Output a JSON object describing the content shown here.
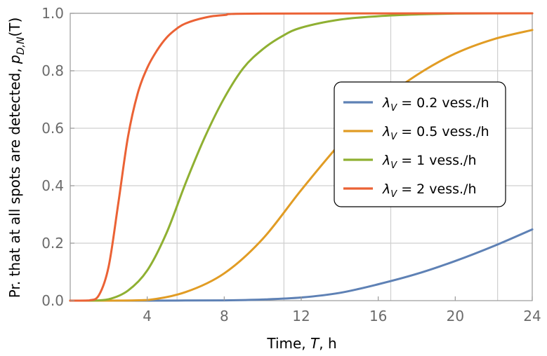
{
  "chart_data": {
    "type": "line",
    "xlabel": {
      "pre": "Time, ",
      "var": "T",
      "post": ", h"
    },
    "ylabel": {
      "pre": "Pr. that at all spots are detected, ",
      "var": "p",
      "sub": "D,N",
      "post": "(T)"
    },
    "xlim": [
      0,
      24
    ],
    "ylim": [
      0,
      1
    ],
    "xticks": [
      "4",
      "8",
      "12",
      "16",
      "20",
      "24"
    ],
    "yticks": [
      "0.0",
      "0.2",
      "0.4",
      "0.6",
      "0.8",
      "1.0"
    ],
    "grid": true,
    "grid_x": [
      5.55,
      11.1,
      16.65,
      22.2
    ],
    "legend_position": "center-right",
    "series": [
      {
        "name": {
          "sym": "λ",
          "sub": "V",
          "rest": " = 0.2 vess./h"
        },
        "color": "#5e81b5",
        "x": [
          0,
          2,
          4,
          6,
          8,
          10,
          12,
          14,
          16,
          18,
          20,
          22,
          24
        ],
        "y": [
          0,
          0,
          0,
          0.0005,
          0.001,
          0.004,
          0.011,
          0.027,
          0.057,
          0.093,
          0.138,
          0.19,
          0.248
        ]
      },
      {
        "name": {
          "sym": "λ",
          "sub": "V",
          "rest": " = 0.5 vess./h"
        },
        "color": "#e19c24",
        "x": [
          0,
          2,
          4,
          6,
          8,
          10,
          12,
          14,
          16,
          18,
          20,
          22,
          24
        ],
        "y": [
          0,
          0,
          0.002,
          0.03,
          0.095,
          0.215,
          0.385,
          0.545,
          0.685,
          0.785,
          0.86,
          0.91,
          0.942
        ]
      },
      {
        "name": {
          "sym": "λ",
          "sub": "V",
          "rest": " = 1 vess./h"
        },
        "color": "#8fb032",
        "x": [
          0,
          1,
          2,
          3,
          4,
          5,
          6,
          7,
          8,
          9,
          10,
          11,
          12,
          14,
          16,
          18,
          20,
          24
        ],
        "y": [
          0,
          0,
          0.005,
          0.035,
          0.105,
          0.235,
          0.41,
          0.57,
          0.705,
          0.81,
          0.875,
          0.92,
          0.95,
          0.978,
          0.99,
          0.996,
          0.999,
          1.0
        ]
      },
      {
        "name": {
          "sym": "λ",
          "sub": "V",
          "rest": " = 2 vess./h"
        },
        "color": "#eb6235",
        "x": [
          0,
          1,
          1.5,
          2,
          2.5,
          3,
          3.5,
          4,
          4.5,
          5,
          5.5,
          6,
          7,
          8,
          10,
          24
        ],
        "y": [
          0,
          0.001,
          0.02,
          0.12,
          0.34,
          0.57,
          0.72,
          0.81,
          0.87,
          0.915,
          0.945,
          0.965,
          0.985,
          0.994,
          0.999,
          1.0
        ]
      }
    ]
  }
}
